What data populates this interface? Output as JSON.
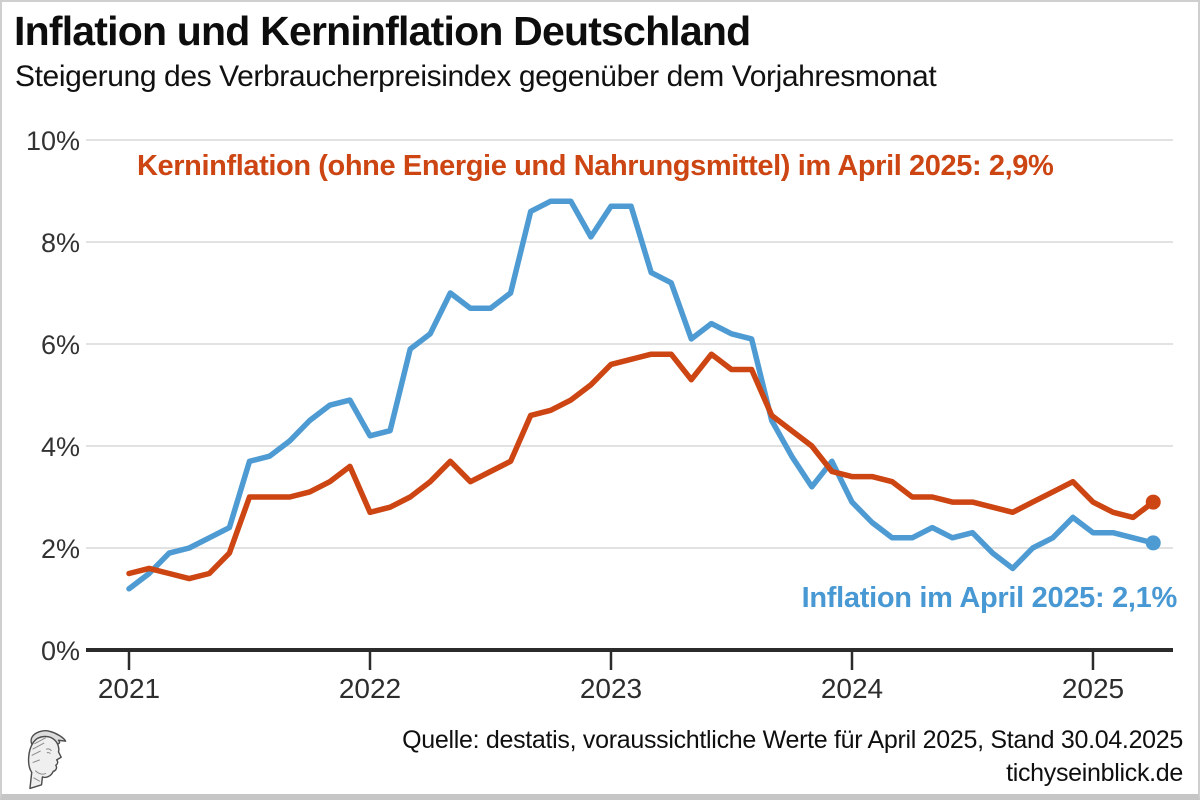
{
  "header": {
    "title": "Inflation und Kerninflation Deutschland",
    "subtitle": "Steigerung des Verbraucherpreisindex gegenüber dem Vorjahresmonat"
  },
  "annotations": {
    "core": "Kerninflation (ohne Energie und Nahrungsmittel) im April 2025: 2,9%",
    "headline": "Inflation im April 2025: 2,1%"
  },
  "footer": {
    "source_line1": "Quelle: destatis, voraussichtliche Werte für April 2025, Stand 30.04.2025",
    "source_line2": "tichyseinblick.de",
    "logo_icon": "tichyseinblick-head-logo"
  },
  "colors": {
    "inflation_blue": "#4E9BD3",
    "core_orange": "#CC4512",
    "axis": "#2b2b2b",
    "gridline": "#e2e2e2",
    "tick_label": "#333333"
  },
  "chart_data": {
    "type": "line",
    "title": "Inflation und Kerninflation Deutschland",
    "x_unit": "month",
    "x_range": [
      "2021-01",
      "2025-04"
    ],
    "x_tick_labels": [
      "2021",
      "2022",
      "2023",
      "2024",
      "2025"
    ],
    "x_tick_month_offsets": [
      0,
      12,
      24,
      36,
      48
    ],
    "y_tick_labels": [
      "0%",
      "2%",
      "4%",
      "6%",
      "8%",
      "10%"
    ],
    "y_tick_values": [
      0,
      2,
      4,
      6,
      8,
      10
    ],
    "ylim": [
      0,
      10
    ],
    "grid": "horizontal",
    "legend": "inline-annotations",
    "series": [
      {
        "name": "Inflation",
        "color": "#4E9BD3",
        "end_label": "Inflation im April 2025: 2,1%",
        "values": [
          1.2,
          1.5,
          1.9,
          2.0,
          2.2,
          2.4,
          3.7,
          3.8,
          4.1,
          4.5,
          4.8,
          4.9,
          4.2,
          4.3,
          5.9,
          6.2,
          7.0,
          6.7,
          6.7,
          7.0,
          8.6,
          8.8,
          8.8,
          8.1,
          8.7,
          8.7,
          7.4,
          7.2,
          6.1,
          6.4,
          6.2,
          6.1,
          4.5,
          3.8,
          3.2,
          3.7,
          2.9,
          2.5,
          2.2,
          2.2,
          2.4,
          2.2,
          2.3,
          1.9,
          1.6,
          2.0,
          2.2,
          2.6,
          2.3,
          2.3,
          2.2,
          2.1
        ]
      },
      {
        "name": "Kerninflation (ohne Energie und Nahrungsmittel)",
        "color": "#CC4512",
        "end_label": "Kerninflation (ohne Energie und Nahrungsmittel) im April 2025: 2,9%",
        "values": [
          1.5,
          1.6,
          1.5,
          1.4,
          1.5,
          1.9,
          3.0,
          3.0,
          3.0,
          3.1,
          3.3,
          3.6,
          2.7,
          2.8,
          3.0,
          3.3,
          3.7,
          3.3,
          3.5,
          3.7,
          4.6,
          4.7,
          4.9,
          5.2,
          5.6,
          5.7,
          5.8,
          5.8,
          5.3,
          5.8,
          5.5,
          5.5,
          4.6,
          4.3,
          4.0,
          3.5,
          3.4,
          3.4,
          3.3,
          3.0,
          3.0,
          2.9,
          2.9,
          2.8,
          2.7,
          2.9,
          3.1,
          3.3,
          2.9,
          2.7,
          2.6,
          2.9
        ]
      }
    ]
  }
}
